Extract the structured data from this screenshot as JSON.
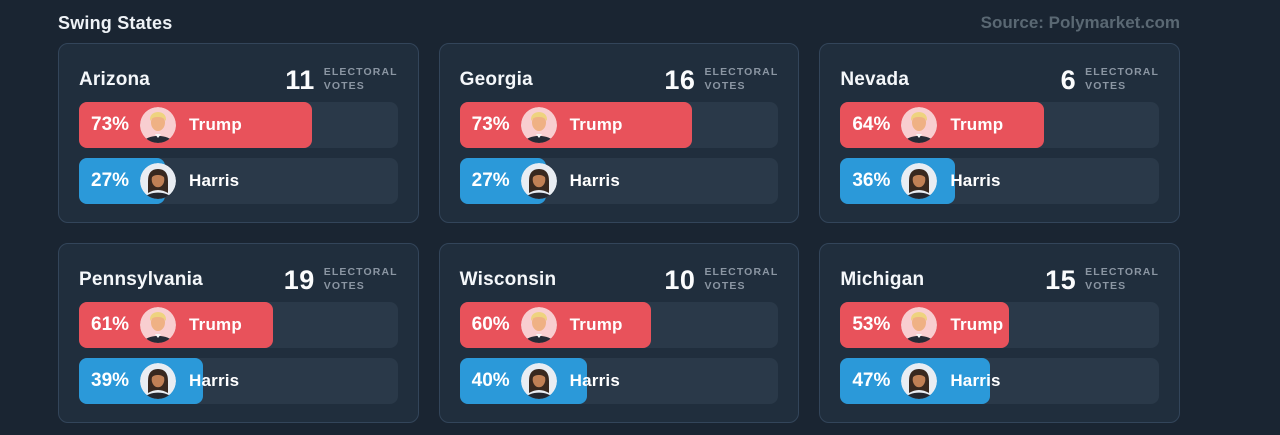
{
  "header": {
    "title": "Swing States",
    "source": "Source: Polymarket.com"
  },
  "labels": {
    "electoral_line1": "ELECTORAL",
    "electoral_line2": "VOTES"
  },
  "colors": {
    "trump": "#e8525b",
    "harris": "#2b99d9",
    "page_bg": "#1a2532",
    "card_bg": "#202e3d",
    "card_border": "#33455a",
    "track": "#2a3949",
    "text": "#f2f5f7",
    "muted": "#8b96a3",
    "source_text": "#5a6873",
    "trump_avatar_bg": "#f8ced0",
    "harris_avatar_bg": "#e9edf2"
  },
  "cards": [
    {
      "state": "Arizona",
      "electoral_votes": "11",
      "trump": {
        "name": "Trump",
        "pct": 73,
        "pct_label": "73%"
      },
      "harris": {
        "name": "Harris",
        "pct": 27,
        "pct_label": "27%"
      }
    },
    {
      "state": "Georgia",
      "electoral_votes": "16",
      "trump": {
        "name": "Trump",
        "pct": 73,
        "pct_label": "73%"
      },
      "harris": {
        "name": "Harris",
        "pct": 27,
        "pct_label": "27%"
      }
    },
    {
      "state": "Nevada",
      "electoral_votes": "6",
      "trump": {
        "name": "Trump",
        "pct": 64,
        "pct_label": "64%"
      },
      "harris": {
        "name": "Harris",
        "pct": 36,
        "pct_label": "36%"
      }
    },
    {
      "state": "Pennsylvania",
      "electoral_votes": "19",
      "trump": {
        "name": "Trump",
        "pct": 61,
        "pct_label": "61%"
      },
      "harris": {
        "name": "Harris",
        "pct": 39,
        "pct_label": "39%"
      }
    },
    {
      "state": "Wisconsin",
      "electoral_votes": "10",
      "trump": {
        "name": "Trump",
        "pct": 60,
        "pct_label": "60%"
      },
      "harris": {
        "name": "Harris",
        "pct": 40,
        "pct_label": "40%"
      }
    },
    {
      "state": "Michigan",
      "electoral_votes": "15",
      "trump": {
        "name": "Trump",
        "pct": 53,
        "pct_label": "53%"
      },
      "harris": {
        "name": "Harris",
        "pct": 47,
        "pct_label": "47%"
      }
    }
  ],
  "chart_data": {
    "type": "bar",
    "title": "Swing States",
    "source": "Source: Polymarket.com",
    "unit": "% win probability",
    "xlim": [
      0,
      100
    ],
    "grid": false,
    "legend_position": "in-bar labels",
    "categories": [
      "Arizona",
      "Georgia",
      "Nevada",
      "Pennsylvania",
      "Wisconsin",
      "Michigan"
    ],
    "electoral_votes": [
      11,
      16,
      6,
      19,
      10,
      15
    ],
    "series": [
      {
        "name": "Trump",
        "color": "#e8525b",
        "values": [
          73,
          73,
          64,
          61,
          60,
          53
        ]
      },
      {
        "name": "Harris",
        "color": "#2b99d9",
        "values": [
          27,
          27,
          36,
          39,
          40,
          47
        ]
      }
    ]
  }
}
